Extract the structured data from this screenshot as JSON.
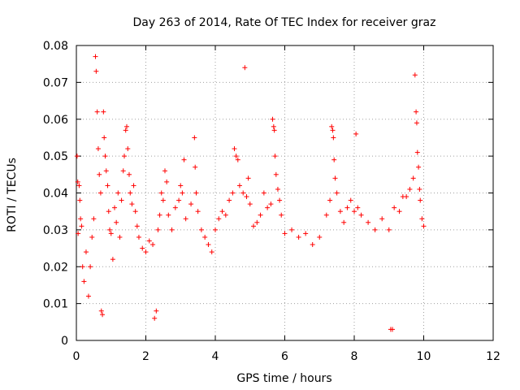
{
  "chart_data": {
    "type": "scatter",
    "title": "Day 263 of 2014, Rate Of TEC Index for receiver graz",
    "xlabel": "GPS time / hours",
    "ylabel": "ROTI / TECUs",
    "xlim": [
      0,
      12
    ],
    "ylim": [
      0,
      0.08
    ],
    "x_ticks": [
      0,
      2,
      4,
      6,
      8,
      10,
      12
    ],
    "x_tick_labels": [
      "0",
      "2",
      "4",
      "6",
      "8",
      "10",
      "12"
    ],
    "y_ticks": [
      0,
      0.01,
      0.02,
      0.03,
      0.04,
      0.05,
      0.06,
      0.07,
      0.08
    ],
    "y_tick_labels": [
      "0",
      "0.01",
      "0.02",
      "0.03",
      "0.04",
      "0.05",
      "0.06",
      "0.07",
      "0.08"
    ],
    "grid": true,
    "marker": "+",
    "color": "#ff0000",
    "series": [
      {
        "name": "ROTI",
        "points": [
          [
            0.02,
            0.05
          ],
          [
            0.04,
            0.043
          ],
          [
            0.08,
            0.042
          ],
          [
            0.1,
            0.038
          ],
          [
            0.12,
            0.033
          ],
          [
            0.05,
            0.029
          ],
          [
            0.15,
            0.031
          ],
          [
            0.18,
            0.02
          ],
          [
            0.22,
            0.016
          ],
          [
            0.28,
            0.024
          ],
          [
            0.35,
            0.012
          ],
          [
            0.4,
            0.02
          ],
          [
            0.45,
            0.028
          ],
          [
            0.5,
            0.033
          ],
          [
            0.55,
            0.077
          ],
          [
            0.57,
            0.073
          ],
          [
            0.6,
            0.062
          ],
          [
            0.63,
            0.052
          ],
          [
            0.66,
            0.045
          ],
          [
            0.7,
            0.04
          ],
          [
            0.72,
            0.008
          ],
          [
            0.75,
            0.007
          ],
          [
            0.78,
            0.062
          ],
          [
            0.8,
            0.055
          ],
          [
            0.83,
            0.05
          ],
          [
            0.86,
            0.046
          ],
          [
            0.9,
            0.042
          ],
          [
            0.93,
            0.035
          ],
          [
            0.96,
            0.03
          ],
          [
            1.0,
            0.029
          ],
          [
            1.05,
            0.022
          ],
          [
            1.1,
            0.036
          ],
          [
            1.15,
            0.032
          ],
          [
            1.2,
            0.04
          ],
          [
            1.25,
            0.028
          ],
          [
            1.3,
            0.038
          ],
          [
            1.35,
            0.046
          ],
          [
            1.38,
            0.05
          ],
          [
            1.42,
            0.057
          ],
          [
            1.45,
            0.058
          ],
          [
            1.48,
            0.052
          ],
          [
            1.52,
            0.045
          ],
          [
            1.55,
            0.04
          ],
          [
            1.6,
            0.037
          ],
          [
            1.65,
            0.042
          ],
          [
            1.7,
            0.035
          ],
          [
            1.75,
            0.031
          ],
          [
            1.8,
            0.028
          ],
          [
            1.9,
            0.025
          ],
          [
            2.0,
            0.024
          ],
          [
            2.1,
            0.027
          ],
          [
            2.2,
            0.026
          ],
          [
            2.25,
            0.006
          ],
          [
            2.3,
            0.008
          ],
          [
            2.35,
            0.03
          ],
          [
            2.4,
            0.034
          ],
          [
            2.45,
            0.04
          ],
          [
            2.5,
            0.038
          ],
          [
            2.55,
            0.046
          ],
          [
            2.6,
            0.043
          ],
          [
            2.65,
            0.034
          ],
          [
            2.75,
            0.03
          ],
          [
            2.85,
            0.036
          ],
          [
            2.95,
            0.038
          ],
          [
            3.0,
            0.042
          ],
          [
            3.05,
            0.04
          ],
          [
            3.1,
            0.049
          ],
          [
            3.15,
            0.033
          ],
          [
            3.3,
            0.037
          ],
          [
            3.4,
            0.055
          ],
          [
            3.42,
            0.047
          ],
          [
            3.45,
            0.04
          ],
          [
            3.5,
            0.035
          ],
          [
            3.6,
            0.03
          ],
          [
            3.7,
            0.028
          ],
          [
            3.8,
            0.026
          ],
          [
            3.9,
            0.024
          ],
          [
            4.0,
            0.03
          ],
          [
            4.1,
            0.033
          ],
          [
            4.2,
            0.035
          ],
          [
            4.3,
            0.034
          ],
          [
            4.4,
            0.038
          ],
          [
            4.5,
            0.04
          ],
          [
            4.55,
            0.052
          ],
          [
            4.6,
            0.05
          ],
          [
            4.65,
            0.049
          ],
          [
            4.7,
            0.042
          ],
          [
            4.8,
            0.04
          ],
          [
            4.85,
            0.074
          ],
          [
            4.9,
            0.039
          ],
          [
            4.95,
            0.044
          ],
          [
            5.0,
            0.037
          ],
          [
            5.1,
            0.031
          ],
          [
            5.2,
            0.032
          ],
          [
            5.3,
            0.034
          ],
          [
            5.4,
            0.04
          ],
          [
            5.5,
            0.036
          ],
          [
            5.6,
            0.037
          ],
          [
            5.65,
            0.06
          ],
          [
            5.68,
            0.058
          ],
          [
            5.7,
            0.057
          ],
          [
            5.72,
            0.05
          ],
          [
            5.75,
            0.045
          ],
          [
            5.8,
            0.041
          ],
          [
            5.85,
            0.038
          ],
          [
            5.9,
            0.034
          ],
          [
            6.0,
            0.029
          ],
          [
            6.2,
            0.03
          ],
          [
            6.4,
            0.028
          ],
          [
            6.6,
            0.029
          ],
          [
            6.8,
            0.026
          ],
          [
            7.0,
            0.028
          ],
          [
            7.2,
            0.034
          ],
          [
            7.3,
            0.038
          ],
          [
            7.35,
            0.058
          ],
          [
            7.38,
            0.057
          ],
          [
            7.4,
            0.055
          ],
          [
            7.42,
            0.049
          ],
          [
            7.45,
            0.044
          ],
          [
            7.5,
            0.04
          ],
          [
            7.6,
            0.035
          ],
          [
            7.7,
            0.032
          ],
          [
            7.8,
            0.036
          ],
          [
            7.9,
            0.038
          ],
          [
            8.0,
            0.035
          ],
          [
            8.05,
            0.056
          ],
          [
            8.1,
            0.036
          ],
          [
            8.2,
            0.034
          ],
          [
            8.4,
            0.032
          ],
          [
            8.6,
            0.03
          ],
          [
            8.8,
            0.033
          ],
          [
            9.0,
            0.03
          ],
          [
            9.05,
            0.003
          ],
          [
            9.1,
            0.003
          ],
          [
            9.15,
            0.036
          ],
          [
            9.3,
            0.035
          ],
          [
            9.4,
            0.039
          ],
          [
            9.5,
            0.039
          ],
          [
            9.6,
            0.041
          ],
          [
            9.7,
            0.044
          ],
          [
            9.75,
            0.072
          ],
          [
            9.78,
            0.062
          ],
          [
            9.8,
            0.059
          ],
          [
            9.82,
            0.051
          ],
          [
            9.85,
            0.047
          ],
          [
            9.88,
            0.041
          ],
          [
            9.9,
            0.038
          ],
          [
            9.95,
            0.033
          ],
          [
            10.0,
            0.031
          ]
        ]
      }
    ]
  }
}
